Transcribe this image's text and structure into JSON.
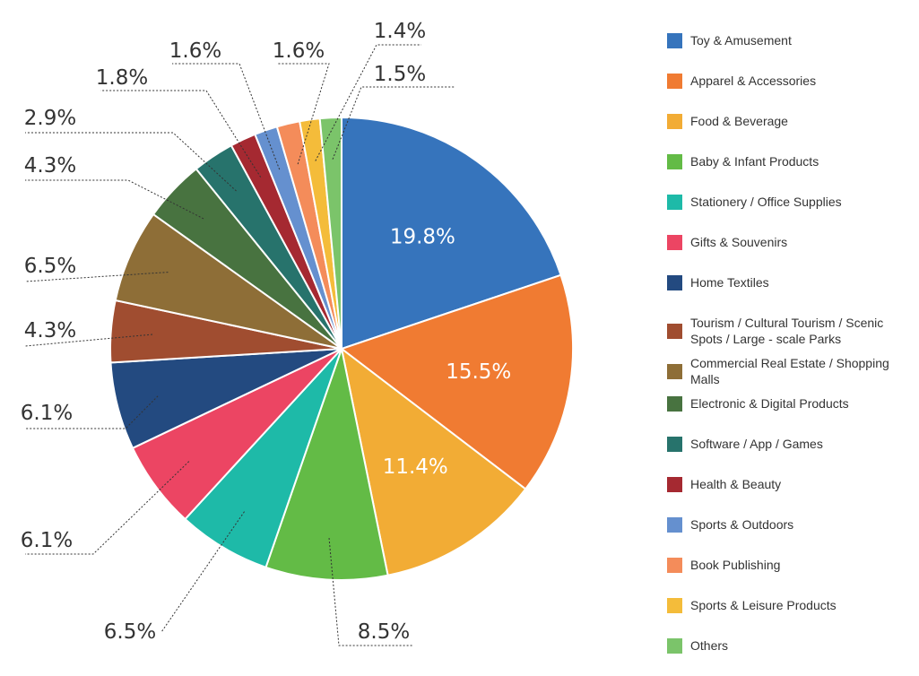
{
  "chart_data": {
    "type": "pie",
    "title": "",
    "legend_position": "right",
    "slices": [
      {
        "label": "Toy & Amusement",
        "value": 19.8,
        "display": "19.8%",
        "color": "#3674bc"
      },
      {
        "label": "Apparel & Accessories",
        "value": 15.5,
        "display": "15.5%",
        "color": "#f07b32"
      },
      {
        "label": "Food & Beverage",
        "value": 11.4,
        "display": "11.4%",
        "color": "#f2ac35"
      },
      {
        "label": "Baby & Infant Products",
        "value": 8.5,
        "display": "8.5%",
        "color": "#63bb46"
      },
      {
        "label": "Stationery / Office Supplies",
        "value": 6.5,
        "display": "6.5%",
        "color": "#1ebaa8"
      },
      {
        "label": "Gifts & Souvenirs",
        "value": 6.1,
        "display": "6.1%",
        "color": "#ec4563"
      },
      {
        "label": "Home Textiles",
        "value": 6.1,
        "display": "6.1%",
        "color": "#234a80"
      },
      {
        "label": "Tourism / Cultural Tourism / Scenic Spots / Large - scale Parks",
        "value": 4.3,
        "display": "4.3%",
        "color": "#a04d30"
      },
      {
        "label": "Commercial Real Estate / Shopping Malls",
        "value": 6.5,
        "display": "6.5%",
        "color": "#8e6e37"
      },
      {
        "label": "Electronic & Digital Products",
        "value": 4.3,
        "display": "4.3%",
        "color": "#487340"
      },
      {
        "label": "Software / App / Games",
        "value": 2.9,
        "display": "2.9%",
        "color": "#27736c"
      },
      {
        "label": "Health & Beauty",
        "value": 1.8,
        "display": "1.8%",
        "color": "#a52931"
      },
      {
        "label": "Sports & Outdoors",
        "value": 1.6,
        "display": "1.6%",
        "color": "#6590cf"
      },
      {
        "label": "Book Publishing",
        "value": 1.6,
        "display": "1.6%",
        "color": "#f48c5a"
      },
      {
        "label": "Sports & Leisure Products",
        "value": 1.4,
        "display": "1.4%",
        "color": "#f4bc3a"
      },
      {
        "label": "Others",
        "value": 1.5,
        "display": "1.5%",
        "color": "#7bc46a"
      }
    ]
  }
}
